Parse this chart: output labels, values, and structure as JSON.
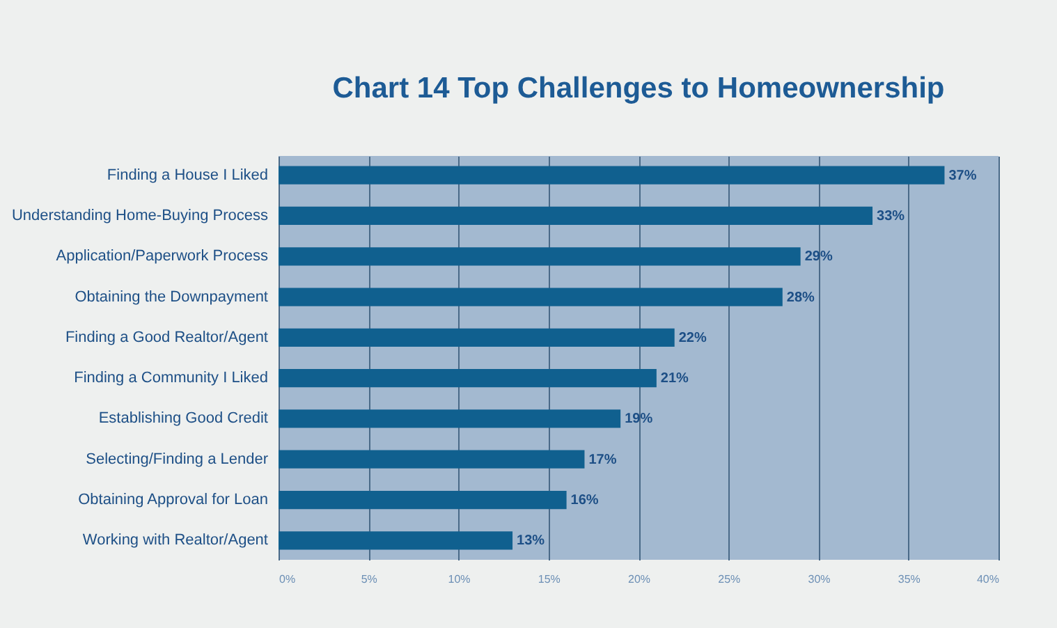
{
  "chart_data": {
    "type": "bar",
    "orientation": "horizontal",
    "title": "Chart 14 Top Challenges to Homeownership",
    "categories": [
      "Finding a House I Liked",
      "Understanding Home-Buying Process",
      "Application/Paperwork Process",
      "Obtaining the Downpayment",
      "Finding a Good Realtor/Agent",
      "Finding a Community I Liked",
      "Establishing Good Credit",
      "Selecting/Finding a Lender",
      "Obtaining Approval for Loan",
      "Working with Realtor/Agent"
    ],
    "values": [
      37,
      33,
      29,
      28,
      22,
      21,
      19,
      17,
      16,
      13
    ],
    "value_labels": [
      "37%",
      "33%",
      "29%",
      "28%",
      "22%",
      "21%",
      "19%",
      "17%",
      "16%",
      "13%"
    ],
    "color": "#10608f",
    "xlim": [
      0,
      40
    ],
    "xticks": [
      {
        "value": 0,
        "label": "0%"
      },
      {
        "value": 5,
        "label": "5%"
      },
      {
        "value": 10,
        "label": "10%"
      },
      {
        "value": 15,
        "label": "15%"
      },
      {
        "value": 20,
        "label": "20%"
      },
      {
        "value": 25,
        "label": "25%"
      },
      {
        "value": 30,
        "label": "30%"
      },
      {
        "value": 35,
        "label": "35%"
      },
      {
        "value": 40,
        "label": "40%"
      }
    ],
    "grid": "x"
  }
}
